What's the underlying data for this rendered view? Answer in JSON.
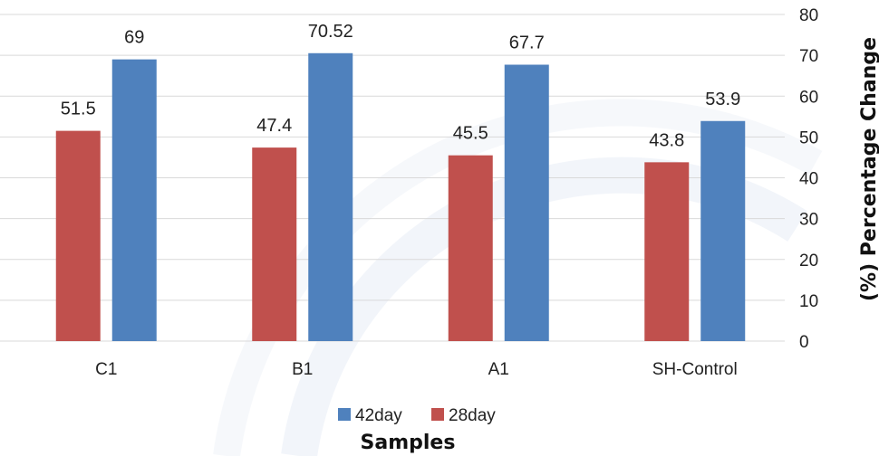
{
  "chart_data": {
    "type": "bar",
    "categories": [
      "C1",
      "B1",
      "A1",
      "SH-Control"
    ],
    "series": [
      {
        "name": "28day",
        "values": [
          51.5,
          47.4,
          45.5,
          43.8
        ],
        "color": "#c0504d",
        "labels": [
          "51.5",
          "47.4",
          "45.5",
          "43.8"
        ]
      },
      {
        "name": "42day",
        "values": [
          69,
          70.52,
          67.7,
          53.9
        ],
        "color": "#4f81bd",
        "labels": [
          "69",
          "70.52",
          "67.7",
          "53.9"
        ]
      }
    ],
    "legend_order": [
      "42day",
      "28day"
    ],
    "xlabel": "Samples",
    "ylabel": "(%) Percentage Change",
    "ylim": [
      0,
      80
    ],
    "yticks": [
      0,
      10,
      20,
      30,
      40,
      50,
      60,
      70,
      80
    ],
    "y_axis_position": "right",
    "legend_position": "bottom",
    "grid": true
  }
}
